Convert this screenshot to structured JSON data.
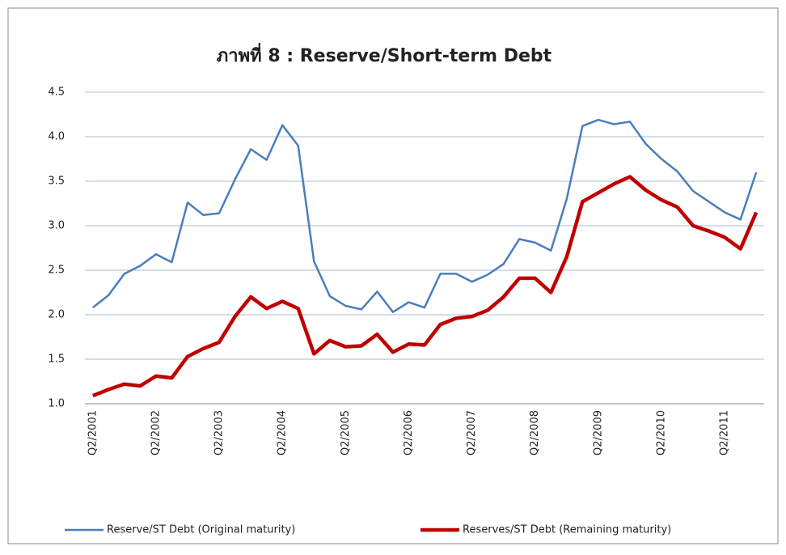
{
  "chart_data": {
    "type": "line",
    "title": "ภาพที่ 8  : Reserve/Short-term Debt",
    "categories": [
      "Q2/2001",
      null,
      null,
      null,
      "Q2/2002",
      null,
      null,
      null,
      "Q2/2003",
      null,
      null,
      null,
      "Q2/2004",
      null,
      null,
      null,
      "Q2/2005",
      null,
      null,
      null,
      "Q2/2006",
      null,
      null,
      null,
      "Q2/2007",
      null,
      null,
      null,
      "Q2/2008",
      null,
      null,
      null,
      "Q2/2009",
      null,
      null,
      null,
      "Q2/2010",
      null,
      null,
      null,
      "Q2/2011",
      null,
      null
    ],
    "series": [
      {
        "name": "Reserve/ST Debt (Original maturity)",
        "color": "#4a7ebb",
        "width": 2.5,
        "values": [
          2.08,
          2.22,
          2.46,
          2.55,
          2.68,
          2.59,
          3.26,
          3.12,
          3.14,
          3.52,
          3.86,
          3.74,
          4.13,
          3.9,
          2.6,
          2.21,
          2.1,
          2.06,
          2.26,
          2.03,
          2.14,
          2.08,
          2.46,
          2.46,
          2.37,
          2.45,
          2.57,
          2.85,
          2.81,
          2.72,
          3.3,
          4.12,
          4.19,
          4.14,
          4.17,
          3.92,
          3.75,
          3.61,
          3.39,
          3.27,
          3.15,
          3.07,
          3.6
        ]
      },
      {
        "name": "Reserves/ST Debt (Remaining maturity)",
        "color": "#c00000",
        "width": 4.5,
        "values": [
          1.09,
          1.16,
          1.22,
          1.2,
          1.31,
          1.29,
          1.53,
          1.62,
          1.69,
          1.98,
          2.2,
          2.07,
          2.15,
          2.07,
          1.56,
          1.71,
          1.64,
          1.65,
          1.78,
          1.58,
          1.67,
          1.66,
          1.89,
          1.96,
          1.98,
          2.05,
          2.2,
          2.41,
          2.41,
          2.25,
          2.65,
          3.27,
          3.37,
          3.47,
          3.55,
          3.4,
          3.29,
          3.21,
          3.0,
          2.94,
          2.87,
          2.74,
          3.15
        ]
      }
    ],
    "ylim": [
      1.0,
      4.5
    ],
    "yticks": [
      {
        "value": 1.0,
        "label": "1.0"
      },
      {
        "value": 1.5,
        "label": "1.5"
      },
      {
        "value": 2.0,
        "label": "2.0"
      },
      {
        "value": 2.5,
        "label": "2.5"
      },
      {
        "value": 3.0,
        "label": "3.0"
      },
      {
        "value": 3.5,
        "label": "3.5"
      },
      {
        "value": 4.0,
        "label": "4.0"
      },
      {
        "value": 4.5,
        "label": "4.5"
      }
    ],
    "grid": true,
    "legend": "bottom"
  }
}
